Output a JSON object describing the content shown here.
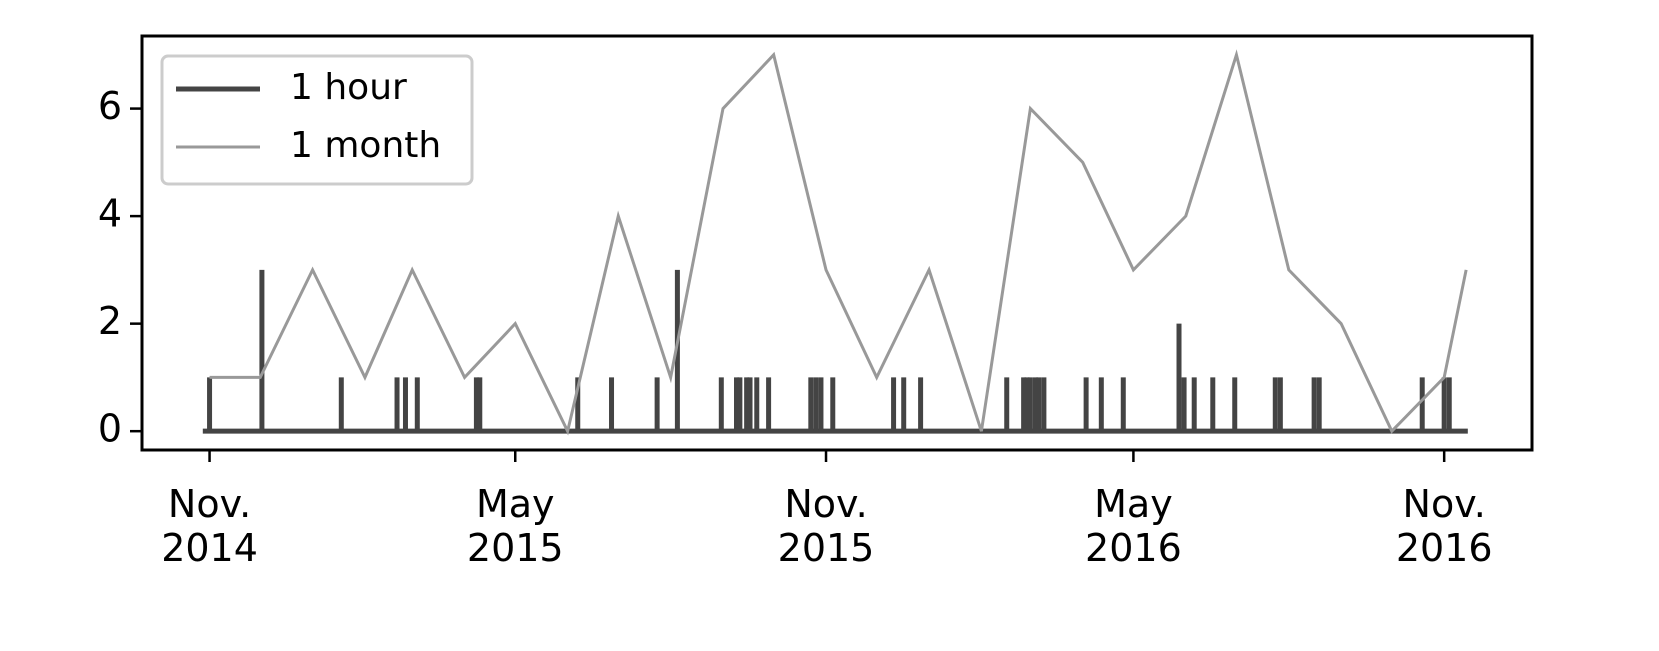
{
  "chart_data": {
    "type": "line",
    "series": [
      {
        "name": "1 hour",
        "color": "#444444",
        "x": [
          "2014-10-28",
          "2014-11-01",
          "2014-12-02",
          "2015-01-18",
          "2015-02-20",
          "2015-02-25",
          "2015-03-04",
          "2015-04-08",
          "2015-04-10",
          "2015-06-07",
          "2015-06-27",
          "2015-07-24",
          "2015-08-05",
          "2015-08-31",
          "2015-09-09",
          "2015-09-11",
          "2015-09-15",
          "2015-09-17",
          "2015-09-21",
          "2015-09-28",
          "2015-10-23",
          "2015-10-26",
          "2015-10-29",
          "2015-11-05",
          "2015-12-11",
          "2015-12-17",
          "2015-12-27",
          "2016-02-16",
          "2016-02-26",
          "2016-02-28",
          "2016-03-01",
          "2016-03-04",
          "2016-03-06",
          "2016-03-09",
          "2016-04-03",
          "2016-04-12",
          "2016-04-25",
          "2016-05-28",
          "2016-05-31",
          "2016-06-06",
          "2016-06-17",
          "2016-06-30",
          "2016-07-24",
          "2016-07-27",
          "2016-08-16",
          "2016-08-19",
          "2016-10-19",
          "2016-11-01",
          "2016-11-04",
          "2016-11-15"
        ],
        "values": [
          0,
          1,
          3,
          1,
          1,
          1,
          1,
          1,
          1,
          1,
          1,
          1,
          3,
          1,
          1,
          1,
          1,
          1,
          1,
          1,
          1,
          1,
          1,
          1,
          1,
          1,
          1,
          1,
          1,
          1,
          1,
          1,
          1,
          1,
          1,
          1,
          1,
          2,
          1,
          1,
          1,
          1,
          1,
          1,
          1,
          1,
          1,
          1,
          1,
          0
        ]
      },
      {
        "name": "1 month",
        "color": "#999999",
        "x": [
          "2014-11-01",
          "2014-12-01",
          "2015-01-01",
          "2015-02-01",
          "2015-03-01",
          "2015-04-01",
          "2015-05-01",
          "2015-06-01",
          "2015-07-01",
          "2015-08-01",
          "2015-09-01",
          "2015-10-01",
          "2015-11-01",
          "2015-12-01",
          "2016-01-01",
          "2016-02-01",
          "2016-03-01",
          "2016-04-01",
          "2016-05-01",
          "2016-06-01",
          "2016-07-01",
          "2016-08-01",
          "2016-09-01",
          "2016-10-01",
          "2016-11-01",
          "2016-11-14"
        ],
        "values": [
          1,
          1,
          3,
          1,
          3,
          1,
          2,
          0,
          4,
          1,
          6,
          7,
          3,
          1,
          3,
          0,
          6,
          5,
          3,
          4,
          7,
          3,
          2,
          0,
          1,
          3
        ]
      }
    ],
    "xlim": [
      "2014-09-22",
      "2016-12-23"
    ],
    "xticks": [
      {
        "value": "2014-11-01",
        "label": "Nov.\n2014"
      },
      {
        "value": "2015-05-01",
        "label": "May\n2015"
      },
      {
        "value": "2015-11-01",
        "label": "Nov.\n2015"
      },
      {
        "value": "2016-05-01",
        "label": "May\n2016"
      },
      {
        "value": "2016-11-01",
        "label": "Nov.\n2016"
      }
    ],
    "ylim": [
      -0.35,
      7.35
    ],
    "yticks": [
      0,
      2,
      4,
      6
    ],
    "legend": "upper left"
  }
}
